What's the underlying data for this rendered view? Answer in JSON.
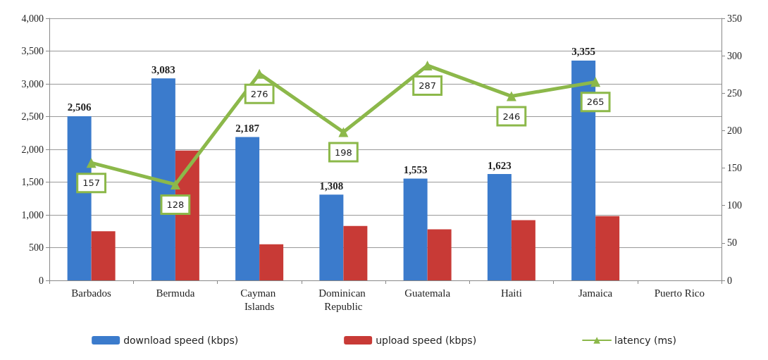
{
  "chart_data": {
    "type": "bar",
    "categories": [
      "Barbados",
      "Bermuda",
      "Cayman Islands",
      "Dominican Republic",
      "Guatemala",
      "Haiti",
      "Jamaica",
      "Puerto Rico"
    ],
    "series": [
      {
        "name": "download speed (kbps)",
        "color": "#3b7bcc",
        "values": [
          2506,
          3083,
          2187,
          1308,
          1553,
          1623,
          3355,
          null
        ],
        "value_labels": [
          "2,506",
          "3,083",
          "2,187",
          "1,308",
          "1,553",
          "1,623",
          "3,355",
          null
        ]
      },
      {
        "name": "upload speed (kbps)",
        "color": "#c83a36",
        "values": [
          750,
          1980,
          550,
          830,
          780,
          920,
          980,
          null
        ]
      },
      {
        "name": "latency (ms)",
        "type": "line",
        "axis": "y2",
        "color": "#8cb84a",
        "values": [
          157,
          128,
          276,
          198,
          287,
          246,
          265,
          null
        ],
        "value_labels": [
          "157",
          "128",
          "276",
          "198",
          "287",
          "246",
          "265",
          null
        ]
      }
    ],
    "ylim": [
      0,
      4000
    ],
    "yticks": [
      0,
      {
        "value": 500,
        "label": "500"
      },
      {
        "value": 1000,
        "label": "1,000"
      },
      {
        "value": 1500,
        "label": "1,500"
      },
      {
        "value": 2000,
        "label": "2,000"
      },
      {
        "value": 2500,
        "label": "2,500"
      },
      {
        "value": 3000,
        "label": "3,000"
      },
      {
        "value": 3500,
        "label": "3,500"
      },
      {
        "value": 4000,
        "label": "4,000"
      }
    ],
    "y2lim": [
      0,
      350
    ],
    "y2ticks": [
      0,
      50,
      100,
      150,
      200,
      250,
      300,
      350
    ],
    "grid": "y",
    "legend": "bottom",
    "marker": "triangle",
    "line_style": "solid"
  }
}
